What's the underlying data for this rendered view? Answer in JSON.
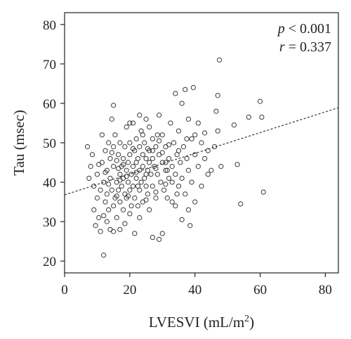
{
  "chart_data": {
    "type": "scatter",
    "title": "",
    "xlabel": "LVESVI (mL/m",
    "xlabel_sup": "2",
    "xlabel_suffix": ")",
    "ylabel": "Tau (msec)",
    "xlim": [
      0,
      84
    ],
    "ylim": [
      17,
      83
    ],
    "x_ticks": [
      0,
      20,
      40,
      60,
      80
    ],
    "y_ticks": [
      20,
      30,
      40,
      50,
      60,
      70,
      80
    ],
    "grid": false,
    "annotations": {
      "p_symbol": "p",
      "p_text": " < 0.001",
      "r_symbol": "r",
      "r_text": " = 0.337"
    },
    "regression": {
      "intercept": 36.8,
      "slope": 0.263
    },
    "marker_color": "#3a3a3a",
    "line_color": "#333333",
    "points": [
      [
        7,
        49
      ],
      [
        7.5,
        41
      ],
      [
        8,
        44
      ],
      [
        8.5,
        47
      ],
      [
        9,
        39
      ],
      [
        9,
        33
      ],
      [
        9.5,
        29
      ],
      [
        10,
        42
      ],
      [
        10,
        36
      ],
      [
        10.5,
        31
      ],
      [
        11,
        38
      ],
      [
        11,
        27.5
      ],
      [
        11.5,
        45
      ],
      [
        11.5,
        52
      ],
      [
        12,
        21.5
      ],
      [
        12,
        40
      ],
      [
        12.5,
        35
      ],
      [
        12.5,
        48
      ],
      [
        13,
        30
      ],
      [
        13,
        37
      ],
      [
        13,
        43
      ],
      [
        13.5,
        33
      ],
      [
        13.5,
        50
      ],
      [
        14,
        41
      ],
      [
        14,
        28
      ],
      [
        14,
        46
      ],
      [
        14.5,
        56
      ],
      [
        14.5,
        38
      ],
      [
        15,
        59.5
      ],
      [
        15,
        34
      ],
      [
        15,
        44
      ],
      [
        15,
        49
      ],
      [
        15.5,
        36
      ],
      [
        15.5,
        52
      ],
      [
        16,
        40
      ],
      [
        16,
        31
      ],
      [
        16,
        45.5
      ],
      [
        16.5,
        38
      ],
      [
        16.5,
        47
      ],
      [
        17,
        42
      ],
      [
        17,
        35
      ],
      [
        17,
        50
      ],
      [
        17,
        28
      ],
      [
        17.5,
        44
      ],
      [
        17.5,
        39
      ],
      [
        18,
        46
      ],
      [
        18,
        33
      ],
      [
        18,
        41
      ],
      [
        18.5,
        37
      ],
      [
        18.5,
        49
      ],
      [
        19,
        43
      ],
      [
        19,
        54
      ],
      [
        19,
        36
      ],
      [
        19.5,
        40
      ],
      [
        19.5,
        45
      ],
      [
        20,
        47
      ],
      [
        20,
        38
      ],
      [
        20,
        50
      ],
      [
        20,
        32
      ],
      [
        20.5,
        42
      ],
      [
        21,
        55
      ],
      [
        21,
        44
      ],
      [
        21,
        39
      ],
      [
        21.5,
        48
      ],
      [
        21.5,
        36
      ],
      [
        22,
        45
      ],
      [
        22,
        41
      ],
      [
        22,
        51
      ],
      [
        22.5,
        34
      ],
      [
        22.5,
        46
      ],
      [
        23,
        43
      ],
      [
        23,
        49
      ],
      [
        23,
        38
      ],
      [
        23.5,
        53
      ],
      [
        23.5,
        40
      ],
      [
        24,
        47
      ],
      [
        24,
        44
      ],
      [
        24,
        35
      ],
      [
        24.5,
        41
      ],
      [
        24.5,
        50
      ],
      [
        25,
        46
      ],
      [
        25,
        39
      ],
      [
        25,
        56
      ],
      [
        25.5,
        43
      ],
      [
        25.5,
        37
      ],
      [
        26,
        48
      ],
      [
        26,
        45
      ],
      [
        26,
        33
      ],
      [
        26.5,
        42
      ],
      [
        27,
        51
      ],
      [
        27,
        39
      ],
      [
        27,
        46
      ],
      [
        27.5,
        44
      ],
      [
        28,
        49
      ],
      [
        28,
        36
      ],
      [
        28.5,
        42
      ],
      [
        29,
        57
      ],
      [
        29,
        47
      ],
      [
        29,
        25.5
      ],
      [
        29.5,
        40
      ],
      [
        30,
        45
      ],
      [
        30,
        52
      ],
      [
        30,
        27
      ],
      [
        30.5,
        38
      ],
      [
        31,
        43
      ],
      [
        31,
        49
      ],
      [
        31.5,
        36
      ],
      [
        32,
        46
      ],
      [
        32,
        41
      ],
      [
        32.5,
        55
      ],
      [
        33,
        44
      ],
      [
        33,
        35
      ],
      [
        33.5,
        50
      ],
      [
        34,
        62.5
      ],
      [
        34,
        42
      ],
      [
        34.5,
        47
      ],
      [
        35,
        39
      ],
      [
        35,
        53
      ],
      [
        35.5,
        45
      ],
      [
        36,
        60
      ],
      [
        36,
        41
      ],
      [
        36.5,
        49
      ],
      [
        37,
        63.5
      ],
      [
        37,
        37
      ],
      [
        37.5,
        46
      ],
      [
        38,
        56
      ],
      [
        38,
        43
      ],
      [
        38.5,
        29
      ],
      [
        39,
        51
      ],
      [
        39,
        40
      ],
      [
        39.5,
        64
      ],
      [
        40,
        47
      ],
      [
        40,
        35
      ],
      [
        41,
        55
      ],
      [
        41,
        44
      ],
      [
        42,
        50
      ],
      [
        42,
        39
      ],
      [
        43,
        52.5
      ],
      [
        43,
        46
      ],
      [
        44,
        42
      ],
      [
        44,
        48
      ],
      [
        45,
        43
      ],
      [
        46,
        49
      ],
      [
        46.5,
        58
      ],
      [
        47,
        62
      ],
      [
        47,
        53
      ],
      [
        47.5,
        71
      ],
      [
        48,
        44
      ],
      [
        52,
        54.5
      ],
      [
        53,
        44.5
      ],
      [
        54,
        34.5
      ],
      [
        56.5,
        56.5
      ],
      [
        60,
        60.5
      ],
      [
        60.5,
        56.5
      ],
      [
        61,
        37.5
      ],
      [
        12,
        31.5
      ],
      [
        15,
        27.5
      ],
      [
        17,
        40.5
      ],
      [
        18.5,
        29.5
      ],
      [
        20.5,
        34
      ],
      [
        21.5,
        27
      ],
      [
        23,
        31
      ],
      [
        25,
        35.5
      ],
      [
        27,
        26
      ],
      [
        28,
        37.5
      ],
      [
        31,
        39.5
      ],
      [
        34,
        34
      ],
      [
        36,
        30.5
      ],
      [
        38,
        33
      ],
      [
        40,
        52
      ],
      [
        12.5,
        42.5
      ],
      [
        14.5,
        47.5
      ],
      [
        16,
        36.5
      ],
      [
        18,
        44.5
      ],
      [
        19,
        41.5
      ],
      [
        20,
        55
      ],
      [
        21,
        48.5
      ],
      [
        22,
        42.5
      ],
      [
        23,
        57
      ],
      [
        24,
        52
      ],
      [
        25,
        42
      ],
      [
        26,
        54
      ],
      [
        27,
        48
      ],
      [
        28,
        43.5
      ],
      [
        29,
        50.5
      ],
      [
        30,
        47.5
      ],
      [
        31,
        45
      ],
      [
        32,
        49.5
      ],
      [
        33,
        40
      ],
      [
        35,
        48
      ],
      [
        10.5,
        44.5
      ],
      [
        13.5,
        39.5
      ],
      [
        16.5,
        43.5
      ],
      [
        19.5,
        36.5
      ],
      [
        22.5,
        39
      ],
      [
        25.5,
        48.5
      ],
      [
        28.5,
        52
      ],
      [
        31.5,
        43
      ],
      [
        34.5,
        37
      ],
      [
        37.5,
        51
      ]
    ]
  }
}
